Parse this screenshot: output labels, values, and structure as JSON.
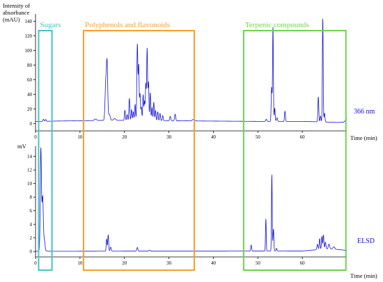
{
  "chart_data": {
    "type": "line",
    "colors": {
      "trace": "#1010d8",
      "axis": "#000000",
      "sugars": "#4bc2c4",
      "polyphenols": "#f5a028",
      "terpenes": "#6fd24d"
    },
    "x_axis": {
      "title": "Time (min)",
      "range": [
        0,
        70
      ],
      "ticks": [
        0,
        10,
        20,
        30,
        40,
        50,
        60
      ],
      "tick_labels": [
        "0",
        "10",
        "20",
        "30",
        "40",
        "50",
        "60"
      ]
    },
    "regions": [
      {
        "name": "Sugars",
        "label": "Sugars",
        "x_range": [
          0.7,
          3.7
        ],
        "color": "#4bc2c4"
      },
      {
        "name": "Polyphenols and flavonoids",
        "label": "Polyphenols and flavonoids",
        "x_range": [
          10.8,
          35.7
        ],
        "color": "#f5a028"
      },
      {
        "name": "Terpenic compounds",
        "label": "Terpenic compounds",
        "x_range": [
          46.8,
          69.8
        ],
        "color": "#6fd24d"
      }
    ],
    "panels": [
      {
        "id": "uv",
        "trace_label": "366 nm",
        "y_title": [
          "Intensity of",
          "absorbance",
          "(mAU)"
        ],
        "ylim": [
          -10,
          150
        ],
        "y_ticks": [
          0,
          20,
          40,
          60,
          80,
          100,
          120,
          140
        ],
        "y_tick_labels": [
          "0",
          "20",
          "40",
          "60",
          "80",
          "100",
          "120",
          "140"
        ],
        "series": [
          {
            "name": "366 nm",
            "baseline": [
              [
                0,
                3
              ],
              [
                2,
                3
              ],
              [
                5,
                3.5
              ],
              [
                12,
                4
              ],
              [
                16,
                4.5
              ],
              [
                30,
                4
              ],
              [
                38,
                3.5
              ],
              [
                50,
                3
              ],
              [
                60,
                3
              ],
              [
                66,
                2
              ],
              [
                68,
                1.5
              ],
              [
                69.3,
                2
              ],
              [
                70,
                6
              ]
            ],
            "peaks": [
              [
                1.8,
                3,
                0.12
              ],
              [
                2.3,
                2.5,
                0.12
              ],
              [
                13.5,
                2,
                0.25
              ],
              [
                15.8,
                50,
                0.16
              ],
              [
                16.1,
                74,
                0.14
              ],
              [
                16.6,
                8,
                0.2
              ],
              [
                17.8,
                2.5,
                0.25
              ],
              [
                20.1,
                14,
                0.1
              ],
              [
                20.6,
                8,
                0.1
              ],
              [
                21.1,
                30,
                0.1
              ],
              [
                21.6,
                15,
                0.1
              ],
              [
                22.0,
                12,
                0.1
              ],
              [
                22.4,
                22,
                0.1
              ],
              [
                22.9,
                104,
                0.11
              ],
              [
                23.2,
                74,
                0.1
              ],
              [
                23.5,
                36,
                0.1
              ],
              [
                23.8,
                18,
                0.1
              ],
              [
                24.2,
                35,
                0.1
              ],
              [
                24.5,
                26,
                0.1
              ],
              [
                24.8,
                50,
                0.1
              ],
              [
                25.1,
                98,
                0.1
              ],
              [
                25.4,
                52,
                0.1
              ],
              [
                25.8,
                38,
                0.1
              ],
              [
                26.2,
                18,
                0.1
              ],
              [
                26.6,
                25,
                0.1
              ],
              [
                27.0,
                14,
                0.1
              ],
              [
                27.5,
                12,
                0.1
              ],
              [
                28.0,
                10,
                0.1
              ],
              [
                28.6,
                7,
                0.1
              ],
              [
                30.3,
                6,
                0.12
              ],
              [
                31.4,
                9,
                0.12
              ],
              [
                35.5,
                2,
                0.25
              ],
              [
                51.9,
                3,
                0.12
              ],
              [
                53.1,
                46,
                0.1
              ],
              [
                53.4,
                128,
                0.09
              ],
              [
                53.8,
                18,
                0.1
              ],
              [
                54.3,
                5,
                0.12
              ],
              [
                56.1,
                14,
                0.1
              ],
              [
                63.6,
                34,
                0.1
              ],
              [
                64.1,
                8,
                0.1
              ],
              [
                64.6,
                141,
                0.09
              ],
              [
                65.0,
                12,
                0.1
              ]
            ]
          }
        ]
      },
      {
        "id": "elsd",
        "trace_label": "ELSD",
        "y_title": [
          "mV"
        ],
        "ylim": [
          -0.8,
          15.5
        ],
        "y_ticks": [
          0,
          2,
          4,
          6,
          8,
          10,
          12,
          14
        ],
        "y_tick_labels": [
          "0",
          "2",
          "4",
          "6",
          "8",
          "10",
          "12",
          "14"
        ],
        "series": [
          {
            "name": "ELSD",
            "baseline": [
              [
                0,
                0.02
              ],
              [
                1.0,
                0.05
              ],
              [
                2.5,
                0.05
              ],
              [
                4,
                0.03
              ],
              [
                20,
                0.05
              ],
              [
                40,
                0.05
              ],
              [
                60,
                0.08
              ],
              [
                64,
                0.3
              ],
              [
                66,
                0.4
              ],
              [
                68,
                0.3
              ],
              [
                70,
                0.15
              ]
            ],
            "peaks": [
              [
                1.2,
                15.0,
                0.13
              ],
              [
                1.6,
                8.0,
                0.15
              ],
              [
                2.0,
                1.5,
                0.15
              ],
              [
                16.0,
                1.8,
                0.1
              ],
              [
                16.35,
                2.4,
                0.1
              ],
              [
                16.9,
                0.6,
                0.12
              ],
              [
                22.9,
                0.55,
                0.12
              ],
              [
                25.6,
                0.15,
                0.15
              ],
              [
                48.5,
                0.9,
                0.1
              ],
              [
                51.8,
                4.7,
                0.08
              ],
              [
                53.15,
                11.2,
                0.08
              ],
              [
                53.5,
                3.2,
                0.1
              ],
              [
                54.2,
                0.4,
                0.1
              ],
              [
                63.4,
                0.8,
                0.12
              ],
              [
                63.9,
                1.6,
                0.1
              ],
              [
                64.4,
                1.9,
                0.1
              ],
              [
                64.75,
                2.1,
                0.1
              ],
              [
                65.2,
                1.0,
                0.12
              ],
              [
                66.0,
                0.7,
                0.15
              ],
              [
                67.1,
                0.35,
                0.2
              ]
            ]
          }
        ]
      }
    ]
  }
}
